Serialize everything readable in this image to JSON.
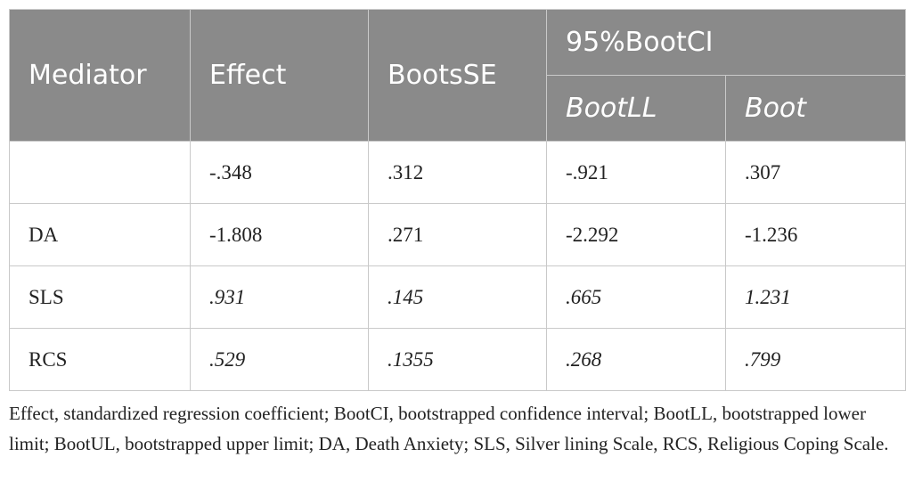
{
  "header": {
    "mediator": "Mediator",
    "effect": "Effect",
    "bootsse": "BootsSE",
    "bootci": "95%BootCI",
    "bootll": "BootLL",
    "bootul": "Boot"
  },
  "rows": [
    {
      "mediator": "",
      "effect": "-.348",
      "bootsse": ".312",
      "bootll": "-.921",
      "bootul": ".307"
    },
    {
      "mediator": "DA",
      "effect": "-1.808",
      "bootsse": ".271",
      "bootll": "-2.292",
      "bootul": "-1.236"
    },
    {
      "mediator": "SLS",
      "effect": ".931",
      "bootsse": ".145",
      "bootll": ".665",
      "bootul": "1.231"
    },
    {
      "mediator": "RCS",
      "effect": ".529",
      "bootsse": ".1355",
      "bootll": ".268",
      "bootul": ".799"
    }
  ],
  "footnote": "Effect, standardized regression coefficient; BootCI, bootstrapped confidence interval; BootLL, bootstrapped lower limit; BootUL, bootstrapped upper limit; DA, Death Anxiety; SLS, Silver lining Scale, RCS, Religious Coping Scale.",
  "colors": {
    "header_bg": "#8a8a8a",
    "header_text": "#ffffff",
    "border": "#c9c9c9",
    "body_text": "#222222"
  }
}
